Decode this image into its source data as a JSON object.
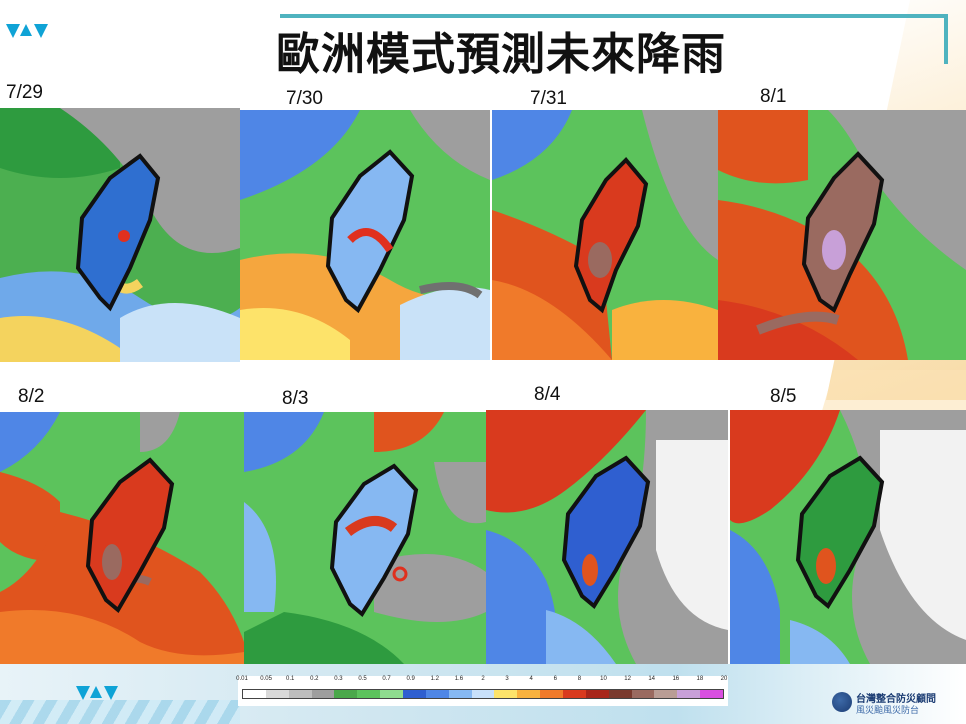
{
  "slide": {
    "title": "歐洲模式預測未來降雨"
  },
  "panels": [
    {
      "date": "7/29"
    },
    {
      "date": "7/30"
    },
    {
      "date": "7/31"
    },
    {
      "date": "8/1"
    },
    {
      "date": "8/2"
    },
    {
      "date": "8/3"
    },
    {
      "date": "8/4"
    },
    {
      "date": "8/5"
    }
  ],
  "colorbar": {
    "ticks": [
      "0.01",
      "0.05",
      "0.1",
      "0.2",
      "0.3",
      "0.5",
      "0.7",
      "0.9",
      "1.2",
      "1.6",
      "2",
      "3",
      "4",
      "6",
      "8",
      "10",
      "12",
      "14",
      "16",
      "18",
      "20"
    ],
    "colors": [
      "#ffffff",
      "#d9d9d9",
      "#bdbdbd",
      "#9e9e9e",
      "#4aa84a",
      "#5cc35c",
      "#8fdc8f",
      "#2f5fd0",
      "#4f86e6",
      "#86b8f2",
      "#c8e0fa",
      "#fde36a",
      "#f9b23e",
      "#f07a2a",
      "#d93a1e",
      "#a8261a",
      "#7a3a2e",
      "#9a6a60",
      "#b99d95",
      "#c8a0d8",
      "#d94fe0"
    ]
  },
  "organization": {
    "name": "台灣整合防災顧問",
    "subtitle": "風災颱風災防台"
  }
}
